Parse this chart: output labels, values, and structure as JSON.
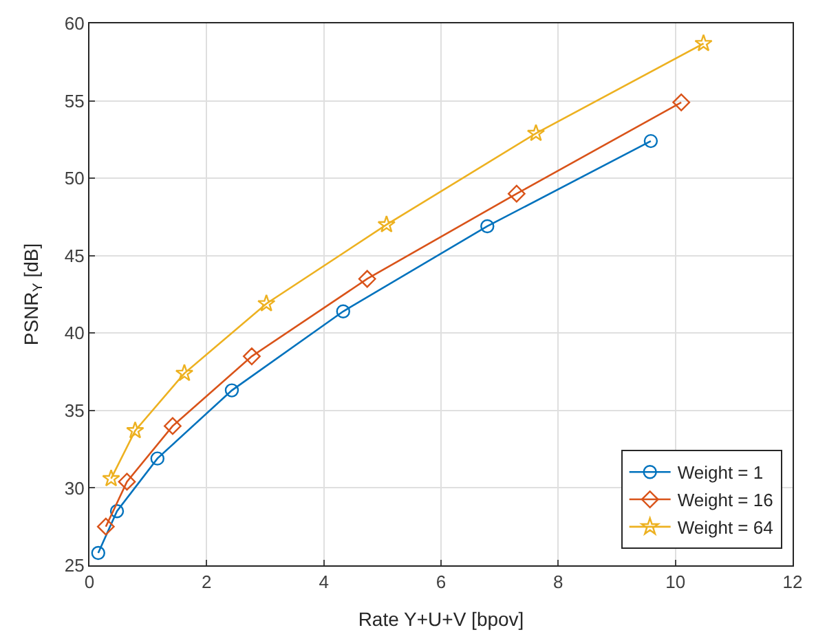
{
  "chart_data": {
    "type": "line",
    "xlabel": "Rate Y+U+V [bpov]",
    "ylabel": "PSNR$_{Y}$ [dB]",
    "xlim": [
      0,
      12
    ],
    "ylim": [
      25,
      60
    ],
    "xticks": [
      0,
      2,
      4,
      6,
      8,
      10,
      12
    ],
    "yticks": [
      25,
      30,
      35,
      40,
      45,
      50,
      55,
      60
    ],
    "grid": true,
    "legend": "bottom right",
    "series": [
      {
        "name": "Weight = 1",
        "color": "#0072bd",
        "marker": "circle",
        "x": [
          0.15,
          0.47,
          1.16,
          2.43,
          4.33,
          6.79,
          9.58
        ],
        "values": [
          25.8,
          28.5,
          31.9,
          36.3,
          41.4,
          46.9,
          52.4
        ]
      },
      {
        "name": "Weight = 16",
        "color": "#d95319",
        "marker": "diamond",
        "x": [
          0.28,
          0.64,
          1.42,
          2.77,
          4.74,
          7.29,
          10.1
        ],
        "values": [
          27.5,
          30.4,
          34.0,
          38.5,
          43.5,
          49.0,
          54.9
        ]
      },
      {
        "name": "Weight = 64",
        "color": "#edb120",
        "marker": "star",
        "x": [
          0.37,
          0.78,
          1.62,
          3.02,
          5.07,
          7.62,
          10.48
        ],
        "values": [
          30.6,
          33.7,
          37.4,
          41.9,
          47.0,
          52.9,
          58.7
        ]
      }
    ]
  }
}
